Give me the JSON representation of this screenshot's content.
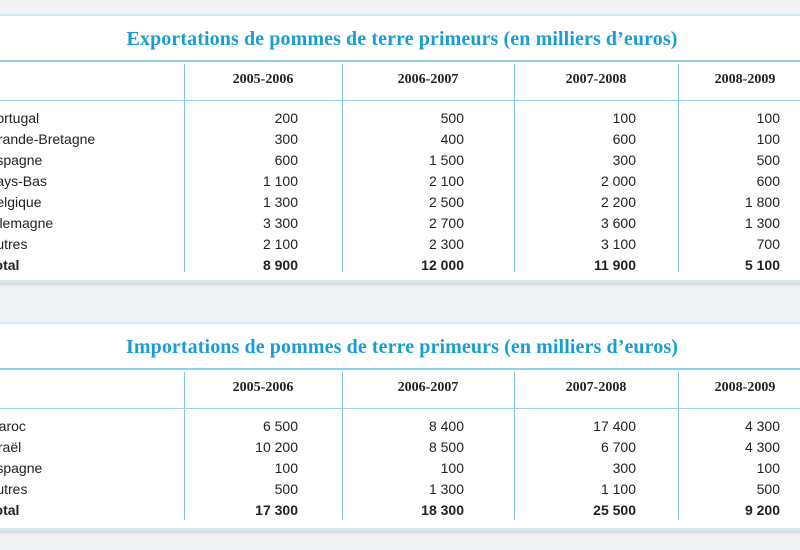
{
  "export_table": {
    "title": "Exportations de pommes de terre primeurs (en milliers d’euros)",
    "columns": [
      "2005-2006",
      "2006-2007",
      "2007-2008",
      "2008-2009"
    ],
    "rows": [
      {
        "country": "Portugal",
        "values": [
          "200",
          "500",
          "100",
          "100"
        ]
      },
      {
        "country": "Grande-Bretagne",
        "values": [
          "300",
          "400",
          "600",
          "100"
        ]
      },
      {
        "country": "Espagne",
        "values": [
          "600",
          "1 500",
          "300",
          "500"
        ]
      },
      {
        "country": "Pays-Bas",
        "values": [
          "1 100",
          "2 100",
          "2 000",
          "600"
        ]
      },
      {
        "country": "Belgique",
        "values": [
          "1 300",
          "2 500",
          "2 200",
          "1 800"
        ]
      },
      {
        "country": "Allemagne",
        "values": [
          "3 300",
          "2 700",
          "3 600",
          "1 300"
        ]
      },
      {
        "country": "Autres",
        "values": [
          "2 100",
          "2 300",
          "3 100",
          "700"
        ]
      }
    ],
    "total": {
      "label": "Total",
      "values": [
        "8 900",
        "12 000",
        "11 900",
        "5 100"
      ]
    }
  },
  "import_table": {
    "title": "Importations de pommes de terre primeurs (en milliers d’euros)",
    "columns": [
      "2005-2006",
      "2006-2007",
      "2007-2008",
      "2008-2009"
    ],
    "rows": [
      {
        "country": "Maroc",
        "values": [
          "6 500",
          "8 400",
          "17 400",
          "4 300"
        ]
      },
      {
        "country": "Israël",
        "values": [
          "10 200",
          "8 500",
          "6 700",
          "4 300"
        ]
      },
      {
        "country": "Espagne",
        "values": [
          "100",
          "100",
          "300",
          "100"
        ]
      },
      {
        "country": "Autres",
        "values": [
          "500",
          "1 300",
          "1 100",
          "500"
        ]
      }
    ],
    "total": {
      "label": "Total",
      "values": [
        "17 300",
        "18 300",
        "25 500",
        "9 200"
      ]
    }
  },
  "colors": {
    "title": "#1a9ed2",
    "rule": "#8fd0e8",
    "background": "#f2f3f4"
  }
}
